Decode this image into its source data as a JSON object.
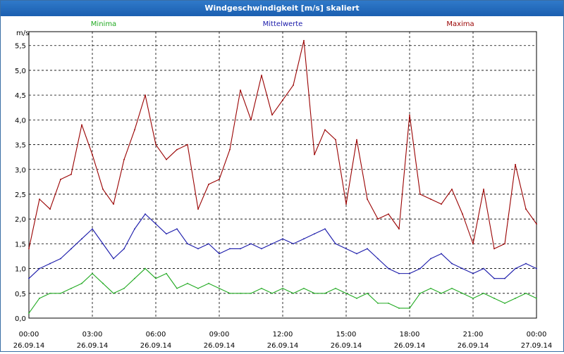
{
  "window": {
    "title": "Windgeschwindigkeit [m/s] skaliert"
  },
  "colors": {
    "minima": "#22aa22",
    "mittelwerte": "#1a1aaa",
    "maxima": "#990000",
    "grid": "#000000",
    "titlebar": "#1f66b8"
  },
  "chart_data": {
    "type": "line",
    "title": "Windgeschwindigkeit [m/s] skaliert",
    "ylabel": "m/s",
    "ylim": [
      0,
      5.5
    ],
    "yticks": [
      "0,0",
      "0,5",
      "1,0",
      "1,5",
      "2,0",
      "2,5",
      "3,0",
      "3,5",
      "4,0",
      "4,5",
      "5,0",
      "5,5"
    ],
    "xlim_hours": [
      0,
      24
    ],
    "xticks": [
      {
        "time": "00:00",
        "date": "26.09.14"
      },
      {
        "time": "03:00",
        "date": "26.09.14"
      },
      {
        "time": "06:00",
        "date": "26.09.14"
      },
      {
        "time": "09:00",
        "date": "26.09.14"
      },
      {
        "time": "12:00",
        "date": "26.09.14"
      },
      {
        "time": "15:00",
        "date": "26.09.14"
      },
      {
        "time": "18:00",
        "date": "26.09.14"
      },
      {
        "time": "21:00",
        "date": "26.09.14"
      },
      {
        "time": "00:00",
        "date": "27.09.14"
      }
    ],
    "grid": true,
    "legend_position": "top",
    "series": [
      {
        "name": "Minima",
        "color": "#22aa22",
        "x": [
          0,
          0.5,
          1,
          1.5,
          2,
          2.5,
          3,
          3.5,
          4,
          4.5,
          5,
          5.5,
          6,
          6.5,
          7,
          7.5,
          8,
          8.5,
          9,
          9.5,
          10,
          10.5,
          11,
          11.5,
          12,
          12.5,
          13,
          13.5,
          14,
          14.5,
          15,
          15.5,
          16,
          16.5,
          17,
          17.5,
          18,
          18.5,
          19,
          19.5,
          20,
          20.5,
          21,
          21.5,
          22,
          22.5,
          23,
          23.5,
          24
        ],
        "values": [
          0.1,
          0.4,
          0.5,
          0.5,
          0.6,
          0.7,
          0.9,
          0.7,
          0.5,
          0.6,
          0.8,
          1.0,
          0.8,
          0.9,
          0.6,
          0.7,
          0.6,
          0.7,
          0.6,
          0.5,
          0.5,
          0.5,
          0.6,
          0.5,
          0.6,
          0.5,
          0.6,
          0.5,
          0.5,
          0.6,
          0.5,
          0.4,
          0.5,
          0.3,
          0.3,
          0.2,
          0.2,
          0.5,
          0.6,
          0.5,
          0.6,
          0.5,
          0.4,
          0.5,
          0.4,
          0.3,
          0.4,
          0.5,
          0.4
        ]
      },
      {
        "name": "Mittelwerte",
        "color": "#1a1aaa",
        "x": [
          0,
          0.5,
          1,
          1.5,
          2,
          2.5,
          3,
          3.5,
          4,
          4.5,
          5,
          5.5,
          6,
          6.5,
          7,
          7.5,
          8,
          8.5,
          9,
          9.5,
          10,
          10.5,
          11,
          11.5,
          12,
          12.5,
          13,
          13.5,
          14,
          14.5,
          15,
          15.5,
          16,
          16.5,
          17,
          17.5,
          18,
          18.5,
          19,
          19.5,
          20,
          20.5,
          21,
          21.5,
          22,
          22.5,
          23,
          23.5,
          24
        ],
        "values": [
          0.8,
          1.0,
          1.1,
          1.2,
          1.4,
          1.6,
          1.8,
          1.5,
          1.2,
          1.4,
          1.8,
          2.1,
          1.9,
          1.7,
          1.8,
          1.5,
          1.4,
          1.5,
          1.3,
          1.4,
          1.4,
          1.5,
          1.4,
          1.5,
          1.6,
          1.5,
          1.6,
          1.7,
          1.8,
          1.5,
          1.4,
          1.3,
          1.4,
          1.2,
          1.0,
          0.9,
          0.9,
          1.0,
          1.2,
          1.3,
          1.1,
          1.0,
          0.9,
          1.0,
          0.8,
          0.8,
          1.0,
          1.1,
          1.0
        ]
      },
      {
        "name": "Maxima",
        "color": "#990000",
        "x": [
          0,
          0.5,
          1,
          1.5,
          2,
          2.5,
          3,
          3.5,
          4,
          4.5,
          5,
          5.5,
          6,
          6.5,
          7,
          7.5,
          8,
          8.5,
          9,
          9.5,
          10,
          10.5,
          11,
          11.5,
          12,
          12.5,
          13,
          13.5,
          14,
          14.5,
          15,
          15.5,
          16,
          16.5,
          17,
          17.5,
          18,
          18.5,
          19,
          19.5,
          20,
          20.5,
          21,
          21.5,
          22,
          22.5,
          23,
          23.5,
          24
        ],
        "values": [
          1.4,
          2.4,
          2.2,
          2.8,
          2.9,
          3.9,
          3.3,
          2.6,
          2.3,
          3.2,
          3.8,
          4.5,
          3.5,
          3.2,
          3.4,
          3.5,
          2.2,
          2.7,
          2.8,
          3.4,
          4.6,
          4.0,
          4.9,
          4.1,
          4.4,
          4.7,
          5.6,
          3.3,
          3.8,
          3.6,
          2.3,
          3.6,
          2.4,
          2.0,
          2.1,
          1.8,
          4.1,
          2.5,
          2.4,
          2.3,
          2.6,
          2.1,
          1.5,
          2.6,
          1.4,
          1.5,
          3.1,
          2.2,
          1.9
        ]
      }
    ]
  }
}
